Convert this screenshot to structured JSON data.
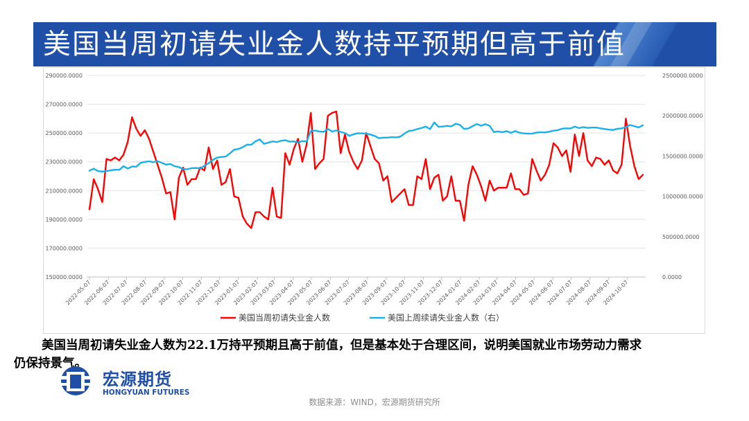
{
  "header": {
    "title": "美国当周初请失业金人数持平预期但高于前值"
  },
  "caption": {
    "line1": "美国当周初请失业金人数为22.1万持平预期且高于前值，但是基本处于合理区间，说明美国就业市场劳动力需求",
    "line2": "仍保持景气。"
  },
  "logo": {
    "name_cn": "宏源期货",
    "name_en": "HONGYUAN FUTURES"
  },
  "source": "数据来源：WIND，宏源期货研究所",
  "colors": {
    "banner": "#1f4fa6",
    "series_initial": "#ff0000",
    "series_continuing": "#1ab0e8"
  },
  "chart_data": {
    "type": "line",
    "x_start": "2022-05-07",
    "x_tick_labels": [
      "2022-05-07",
      "2022-06-07",
      "2022-07-07",
      "2022-08-07",
      "2022-09-07",
      "2022-10-07",
      "2022-11-07",
      "2022-12-07",
      "2023-01-07",
      "2023-02-07",
      "2023-03-07",
      "2023-04-07",
      "2023-05-07",
      "2023-06-07",
      "2023-07-07",
      "2023-08-07",
      "2023-09-07",
      "2023-10-07",
      "2023-11-07",
      "2023-12-07",
      "2024-01-07",
      "2024-02-07",
      "2024-03-07",
      "2024-04-07",
      "2024-05-07",
      "2024-06-07",
      "2024-07-07",
      "2024-08-07",
      "2024-09-07",
      "2024-10-07"
    ],
    "y_left": {
      "min": 150000,
      "max": 290000,
      "step": 20000,
      "tick_labels": [
        "150000.0000",
        "170000.0000",
        "190000.0000",
        "210000.0000",
        "230000.0000",
        "250000.0000",
        "270000.0000",
        "290000.0000"
      ]
    },
    "y_right": {
      "min": 0,
      "max": 2500000,
      "step": 500000,
      "tick_labels": [
        "0.0000",
        "500000.0000",
        "1000000.0000",
        "1500000.0000",
        "2000000.0000",
        "2500000.0000"
      ]
    },
    "grid": "horizontal",
    "legend_position": "bottom",
    "series": [
      {
        "name": "美国当周初请失业金人数",
        "axis": "left",
        "values": [
          197000,
          218000,
          211000,
          202000,
          232000,
          231000,
          233000,
          231000,
          235000,
          244000,
          261000,
          253000,
          248000,
          252000,
          246000,
          237000,
          228000,
          219000,
          208000,
          209000,
          190000,
          219000,
          226000,
          214000,
          218000,
          218000,
          226000,
          224000,
          240000,
          225000,
          231000,
          214000,
          216000,
          225000,
          206000,
          205000,
          192000,
          187000,
          184000,
          195000,
          195000,
          192000,
          190000,
          212000,
          192000,
          191000,
          236000,
          228000,
          239000,
          246000,
          230000,
          242000,
          264000,
          225000,
          229000,
          232000,
          262000,
          264000,
          265000,
          236000,
          249000,
          237000,
          230000,
          225000,
          231000,
          250000,
          241000,
          232000,
          229000,
          217000,
          220000,
          202000,
          205000,
          208000,
          211000,
          200000,
          200000,
          220000,
          218000,
          232000,
          211000,
          219000,
          221000,
          203000,
          206000,
          220000,
          203000,
          203000,
          189000,
          214000,
          227000,
          221000,
          213000,
          203000,
          217000,
          210000,
          212000,
          212000,
          212000,
          222000,
          211000,
          211000,
          207000,
          208000,
          232000,
          224000,
          217000,
          221000,
          228000,
          243000,
          240000,
          234000,
          238000,
          223000,
          249000,
          234000,
          250000,
          231000,
          227000,
          233000,
          232000,
          228000,
          231000,
          224000,
          222000,
          228000,
          260000,
          241000,
          227000,
          218000,
          221000
        ]
      },
      {
        "name": "美国上周续请失业金人数（右）",
        "axis": "right",
        "values": [
          1318000,
          1343000,
          1314000,
          1308000,
          1313000,
          1324000,
          1331000,
          1329000,
          1375000,
          1345000,
          1371000,
          1368000,
          1416000,
          1428000,
          1435000,
          1424000,
          1437000,
          1416000,
          1394000,
          1402000,
          1374000,
          1364000,
          1339000,
          1337000,
          1350000,
          1352000,
          1347000,
          1379000,
          1412000,
          1453000,
          1481000,
          1489000,
          1494000,
          1534000,
          1580000,
          1588000,
          1610000,
          1642000,
          1640000,
          1683000,
          1707000,
          1652000,
          1666000,
          1682000,
          1674000,
          1689000,
          1697000,
          1679000,
          1682000,
          1668000,
          1686000,
          1681000,
          1811000,
          1815000,
          1806000,
          1801000,
          1837000,
          1804000,
          1818000,
          1800000,
          1786000,
          1751000,
          1769000,
          1783000,
          1782000,
          1778000,
          1767000,
          1750000,
          1722000,
          1728000,
          1729000,
          1735000,
          1732000,
          1741000,
          1779000,
          1812000,
          1818000,
          1835000,
          1848000,
          1866000,
          1834000,
          1918000,
          1863000,
          1867000,
          1875000,
          1868000,
          1901000,
          1887000,
          1838000,
          1842000,
          1871000,
          1898000,
          1876000,
          1896000,
          1875000,
          1798000,
          1806000,
          1796000,
          1810000,
          1788000,
          1811000,
          1790000,
          1782000,
          1778000,
          1779000,
          1792000,
          1796000,
          1794000,
          1803000,
          1815000,
          1821000,
          1840000,
          1844000,
          1842000,
          1866000,
          1847000,
          1860000,
          1850000,
          1854000,
          1854000,
          1844000,
          1836000,
          1828000,
          1824000,
          1839000,
          1843000,
          1861000,
          1886000,
          1871000,
          1855000,
          1883000
        ]
      }
    ]
  }
}
